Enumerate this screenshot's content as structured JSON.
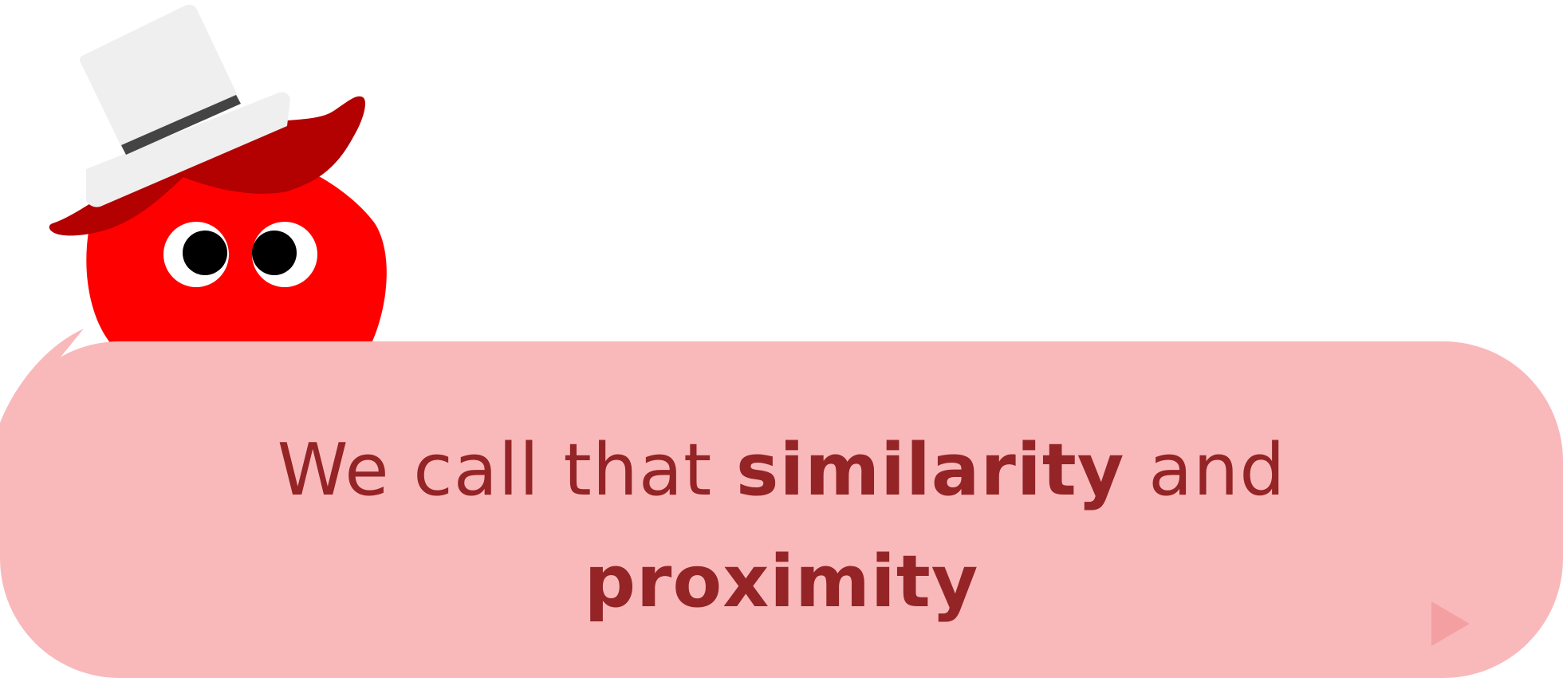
{
  "dialogue": {
    "part1": "We call that ",
    "term1": "similarity",
    "part2": " and",
    "term2": "proximity"
  },
  "colors": {
    "bubble": "#f9b9bb",
    "text": "#942426",
    "character_body": "#ff0000",
    "hat_brim": "#b30000",
    "hat": "#efefef",
    "hat_band": "#444444",
    "advance_arrow": "#f4a0a2"
  },
  "icons": {
    "character": "red-blob-mascot",
    "advance": "play-triangle-icon"
  }
}
